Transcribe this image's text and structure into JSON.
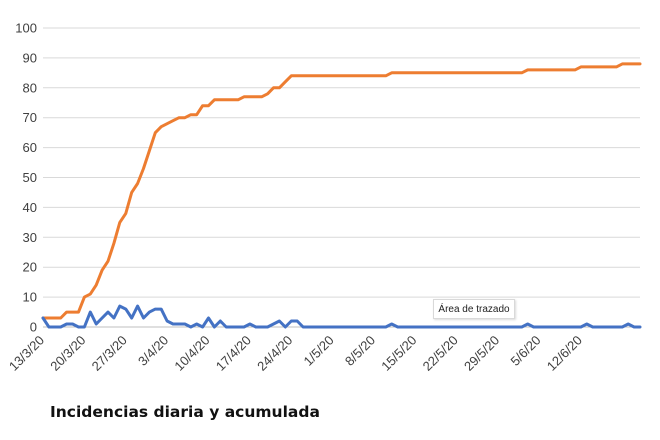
{
  "chart_data": {
    "type": "line",
    "title": "Incidencias diaria y acumulada",
    "tooltip": "Área de trazado",
    "ylim": [
      0,
      100
    ],
    "yticks": [
      0,
      10,
      20,
      30,
      40,
      50,
      60,
      70,
      80,
      90,
      100
    ],
    "x_tick_labels": [
      "13/3/20",
      "20/3/20",
      "27/3/20",
      "3/4/20",
      "10/4/20",
      "17/4/20",
      "24/4/20",
      "1/5/20",
      "8/5/20",
      "15/5/20",
      "22/5/20",
      "29/5/20",
      "5/6/20",
      "12/6/20"
    ],
    "x_start": "13/3/20",
    "x_end": "14/6/20",
    "grid": "horizontal",
    "series": [
      {
        "color": "#ED7D31",
        "values": [
          3,
          3,
          3,
          3,
          5,
          5,
          5,
          10,
          11,
          14,
          19,
          22,
          28,
          35,
          38,
          45,
          48,
          53,
          59,
          65,
          67,
          68,
          69,
          70,
          70,
          71,
          71,
          74,
          74,
          76,
          76,
          76,
          76,
          76,
          77,
          77,
          77,
          77,
          78,
          80,
          80,
          82,
          84,
          84,
          84,
          84,
          84,
          84,
          84,
          84,
          84,
          84,
          84,
          84,
          84,
          84,
          84,
          84,
          84,
          85,
          85,
          85,
          85,
          85,
          85,
          85,
          85,
          85,
          85,
          85,
          85,
          85,
          85,
          85,
          85,
          85,
          85,
          85,
          85,
          85,
          85,
          85,
          86,
          86,
          86,
          86,
          86,
          86,
          86,
          86,
          86,
          87,
          87,
          87,
          87,
          87,
          87,
          87,
          88,
          88,
          88,
          88
        ]
      },
      {
        "color": "#4472C4",
        "values": [
          3,
          0,
          0,
          0,
          1,
          1,
          0,
          0,
          5,
          1,
          3,
          5,
          3,
          7,
          6,
          3,
          7,
          3,
          5,
          6,
          6,
          2,
          1,
          1,
          1,
          0,
          1,
          0,
          3,
          0,
          2,
          0,
          0,
          0,
          0,
          1,
          0,
          0,
          0,
          1,
          2,
          0,
          2,
          2,
          0,
          0,
          0,
          0,
          0,
          0,
          0,
          0,
          0,
          0,
          0,
          0,
          0,
          0,
          0,
          1,
          0,
          0,
          0,
          0,
          0,
          0,
          0,
          0,
          0,
          0,
          0,
          0,
          0,
          0,
          0,
          0,
          0,
          0,
          0,
          0,
          0,
          0,
          1,
          0,
          0,
          0,
          0,
          0,
          0,
          0,
          0,
          0,
          1,
          0,
          0,
          0,
          0,
          0,
          0,
          1,
          0,
          0
        ]
      }
    ]
  }
}
